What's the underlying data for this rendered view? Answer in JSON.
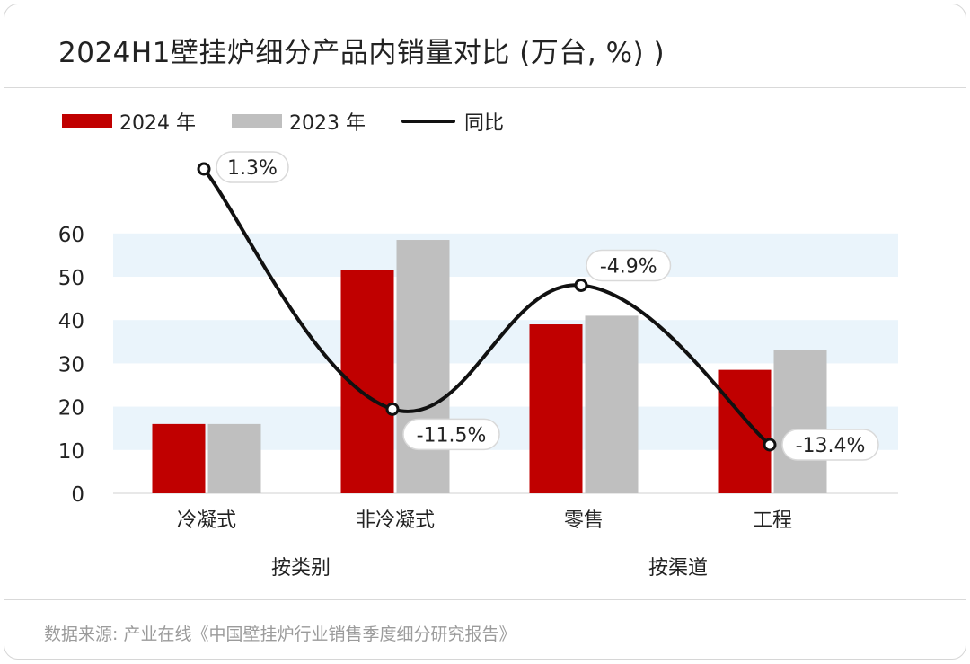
{
  "title": "2024H1壁挂炉细分产品内销量对比 (万台, %) )",
  "footer": "数据来源: 产业在线《中国壁挂炉行业销售季度细分研究报告》",
  "colors": {
    "s2024": "#c00000",
    "s2023": "#bfbfbf",
    "yoy": "#111111",
    "band": "#eaf4fb"
  },
  "chart_data": {
    "type": "bar",
    "categories": [
      "冷凝式",
      "非冷凝式",
      "零售",
      "工程"
    ],
    "groups": [
      {
        "label": "按类别",
        "categories": [
          "冷凝式",
          "非冷凝式"
        ]
      },
      {
        "label": "按渠道",
        "categories": [
          "零售",
          "工程"
        ]
      }
    ],
    "series": [
      {
        "name": "2024 年",
        "type": "bar",
        "values": [
          16,
          51.5,
          39,
          28.5
        ]
      },
      {
        "name": "2023 年",
        "type": "bar",
        "values": [
          16,
          58.5,
          41,
          33
        ]
      },
      {
        "name": "同比",
        "type": "line",
        "values": [
          1.3,
          -11.5,
          -4.9,
          -13.4
        ],
        "labels": [
          "1.3%",
          "-11.5%",
          "-4.9%",
          "-13.4%"
        ]
      }
    ],
    "ylim": [
      0,
      60
    ],
    "yticks": [
      0,
      10,
      20,
      30,
      40,
      50,
      60
    ],
    "legend": "top-left"
  }
}
